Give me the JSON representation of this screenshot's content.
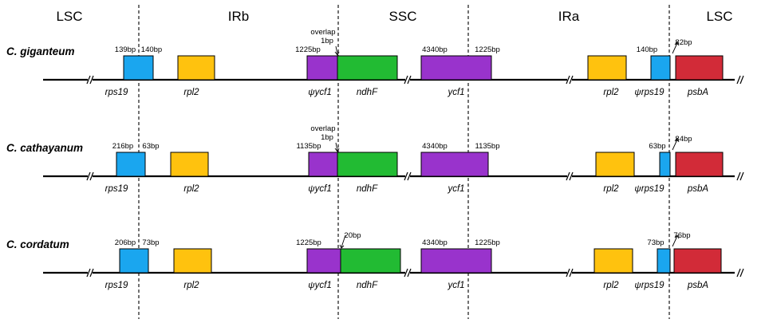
{
  "regions": [
    "LSC",
    "IRb",
    "SSC",
    "IRa",
    "LSC"
  ],
  "colors": {
    "rps19": "#1aa6ef",
    "rpl2": "#ffc20e",
    "ycf1": "#9933cc",
    "ndhF": "#22bb33",
    "psbA": "#d22b38"
  },
  "rows": [
    {
      "species": "C. giganteum",
      "rps19_left": "139bp",
      "rps19_right": "140bp",
      "ycf1_psi": "1225bp",
      "overlap_label": [
        "overlap",
        "1bp"
      ],
      "ycf1_ssc": "4340bp",
      "ycf1_ira": "1225bp",
      "rps19_psi": "140bp",
      "psbA_gap": "82bp"
    },
    {
      "species": "C. cathayanum",
      "rps19_left": "216bp",
      "rps19_right": "63bp",
      "ycf1_psi": "1135bp",
      "overlap_label": [
        "overlap",
        "1bp"
      ],
      "ycf1_ssc": "4340bp",
      "ycf1_ira": "1135bp",
      "rps19_psi": "63bp",
      "psbA_gap": "84bp"
    },
    {
      "species": "C. cordatum",
      "rps19_left": "206bp",
      "rps19_right": "73bp",
      "ycf1_psi": "1225bp",
      "overlap_label": [
        "20bp"
      ],
      "ycf1_ssc": "4340bp",
      "ycf1_ira": "1225bp",
      "rps19_psi": "73bp",
      "psbA_gap": "76bp"
    }
  ],
  "genes": {
    "rps19": "rps19",
    "rpl2": "rpl2",
    "psi_ycf1": "ψycf1",
    "ndhF": "ndhF",
    "ycf1": "ycf1",
    "psi_rps19": "ψrps19",
    "psbA": "psbA"
  }
}
